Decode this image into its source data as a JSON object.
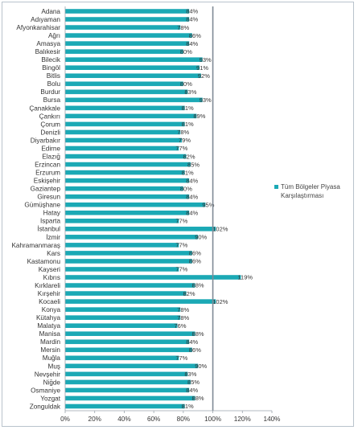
{
  "chart_data": {
    "type": "bar",
    "orientation": "horizontal",
    "categories": [
      "Adana",
      "Adıyaman",
      "Afyonkarahisar",
      "Ağrı",
      "Amasya",
      "Balıkesir",
      "Bilecik",
      "Bingöl",
      "Bitlis",
      "Bolu",
      "Burdur",
      "Bursa",
      "Çanakkale",
      "Çankırı",
      "Çorum",
      "Denizli",
      "Diyarbakır",
      "Edirne",
      "Elazığ",
      "Erzincan",
      "Erzurum",
      "Eskişehir",
      "Gaziantep",
      "Giresun",
      "Gümüşhane",
      "Hatay",
      "Isparta",
      "İstanbul",
      "İzmir",
      "Kahramanmaraş",
      "Kars",
      "Kastamonu",
      "Kayseri",
      "Kıbrıs",
      "Kırklareli",
      "Kırşehir",
      "Kocaeli",
      "Konya",
      "Kütahya",
      "Malatya",
      "Manisa",
      "Mardin",
      "Mersin",
      "Muğla",
      "Muş",
      "Nevşehir",
      "Niğde",
      "Osmaniye",
      "Yozgat",
      "Zonguldak"
    ],
    "series": [
      {
        "name": "Tüm Bölgeler Piyasa Karşılaştırması",
        "values": [
          84,
          84,
          78,
          86,
          84,
          80,
          93,
          91,
          92,
          80,
          83,
          93,
          81,
          89,
          81,
          78,
          79,
          77,
          82,
          85,
          81,
          84,
          80,
          84,
          95,
          84,
          77,
          102,
          90,
          77,
          86,
          86,
          77,
          119,
          88,
          82,
          102,
          78,
          78,
          76,
          88,
          84,
          86,
          77,
          90,
          83,
          85,
          84,
          88,
          81
        ],
        "labels": [
          "84%",
          "84%",
          "78%",
          "86%",
          "84%",
          "80%",
          "93%",
          "91%",
          "92%",
          "80%",
          "83%",
          "93%",
          "81%",
          "89%",
          "81%",
          "78%",
          "79%",
          "77%",
          "82%",
          "85%",
          "81%",
          "84%",
          "80%",
          "84%",
          "95%",
          "84%",
          "77%",
          "102%",
          "90%",
          "77%",
          "86%",
          "86%",
          "77%",
          "119%",
          "88%",
          "82%",
          "102%",
          "78%",
          "78%",
          "76%",
          "88%",
          "84%",
          "86%",
          "77%",
          "90%",
          "83%",
          "85%",
          "84%",
          "88%",
          "81%"
        ]
      }
    ],
    "xlim": [
      0,
      140
    ],
    "xticks": [
      "0%",
      "20%",
      "40%",
      "60%",
      "80%",
      "100%",
      "120%",
      "140%"
    ],
    "reference_line": 100,
    "legend": {
      "position": "right",
      "label": "Tüm Bölgeler Piyasa Karşılaştırması"
    },
    "colors": {
      "bar": "#1ba9b5",
      "reference": "#7f8a96",
      "axis": "#9aa3ab"
    }
  }
}
